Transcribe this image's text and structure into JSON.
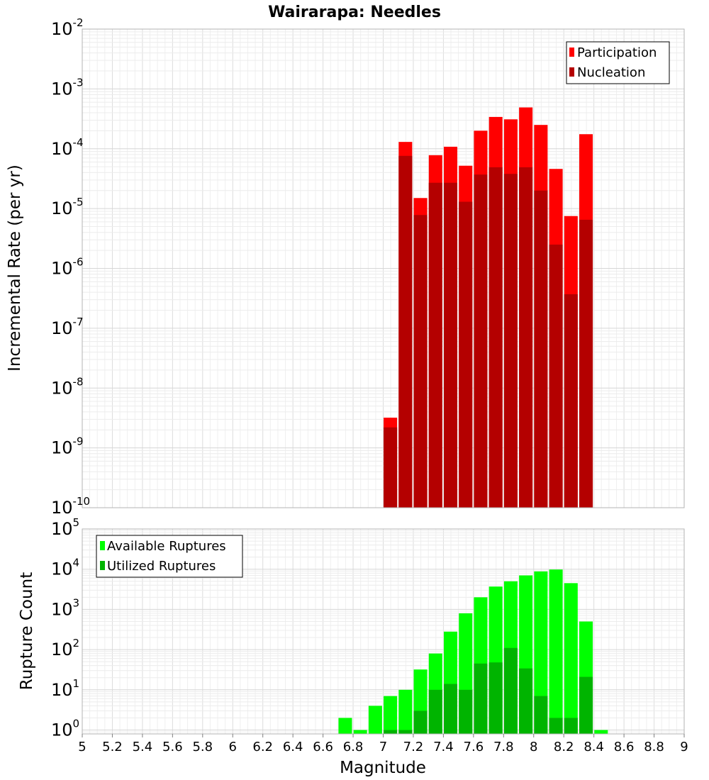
{
  "chart_data": [
    {
      "type": "bar",
      "title": "Wairarapa: Needles",
      "xlabel": "Magnitude",
      "ylabel": "Incremental Rate (per yr)",
      "yscale": "log",
      "ylim": [
        1e-10,
        0.01
      ],
      "ytick_exponents": [
        "-10",
        "-9",
        "-8",
        "-7",
        "-6",
        "-5",
        "-4",
        "-3",
        "-2"
      ],
      "xlim": [
        5,
        9
      ],
      "bar_width": 0.1,
      "grid": true,
      "legend_position": "top-right",
      "colors": {
        "Participation": "#ff0000",
        "Nucleation": "#b40000"
      },
      "x": [
        7.05,
        7.15,
        7.25,
        7.35,
        7.45,
        7.55,
        7.65,
        7.75,
        7.85,
        7.95,
        8.05,
        8.15,
        8.25,
        8.35
      ],
      "series": [
        {
          "name": "Participation",
          "values": [
            3.2e-09,
            0.00013,
            1.5e-05,
            7.8e-05,
            0.000108,
            5.2e-05,
            0.0002,
            0.00034,
            0.00031,
            0.00049,
            0.00025,
            4.6e-05,
            7.5e-06,
            0.000175
          ]
        },
        {
          "name": "Nucleation",
          "values": [
            2.2e-09,
            7.6e-05,
            7.8e-06,
            2.7e-05,
            2.7e-05,
            1.3e-05,
            3.7e-05,
            4.9e-05,
            3.8e-05,
            4.9e-05,
            2e-05,
            2.5e-06,
            3.7e-07,
            6.5e-06
          ]
        }
      ]
    },
    {
      "type": "bar",
      "xlabel": "Magnitude",
      "ylabel": "Rupture Count",
      "yscale": "log",
      "ylim": [
        0.8,
        100000.0
      ],
      "ytick_exponents": [
        "0",
        "1",
        "2",
        "3",
        "4",
        "5"
      ],
      "xlim": [
        5,
        9
      ],
      "xticks": [
        "5",
        "5.2",
        "5.4",
        "5.6",
        "5.8",
        "6",
        "6.2",
        "6.4",
        "6.6",
        "6.8",
        "7",
        "7.2",
        "7.4",
        "7.6",
        "7.8",
        "8",
        "8.2",
        "8.4",
        "8.6",
        "8.8",
        "9"
      ],
      "bar_width": 0.1,
      "grid": true,
      "legend_position": "top-left",
      "colors": {
        "Available Ruptures": "#00ff00",
        "Utilized Ruptures": "#00b400"
      },
      "x": [
        6.75,
        6.85,
        6.95,
        7.05,
        7.15,
        7.25,
        7.35,
        7.45,
        7.55,
        7.65,
        7.75,
        7.85,
        7.95,
        8.05,
        8.15,
        8.25,
        8.35,
        8.45
      ],
      "series": [
        {
          "name": "Available Ruptures",
          "values": [
            2,
            1,
            4,
            7,
            10,
            32,
            80,
            280,
            800,
            2000,
            3700,
            5000,
            7000,
            8800,
            9800,
            4500,
            500,
            1
          ]
        },
        {
          "name": "Utilized Ruptures",
          "values": [
            0,
            0,
            0,
            1,
            1,
            3,
            10,
            14,
            10,
            45,
            48,
            110,
            34,
            7,
            2,
            2,
            21,
            0
          ]
        }
      ]
    }
  ]
}
